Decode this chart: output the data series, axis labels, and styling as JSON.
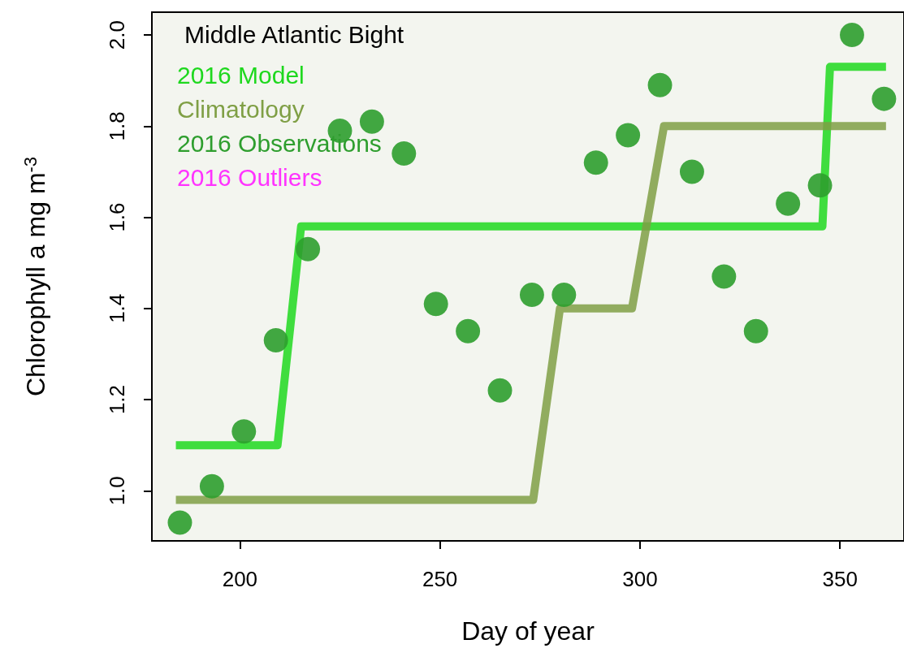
{
  "chart_data": {
    "type": "scatter",
    "legend_title": "Middle Atlantic Bight",
    "xlabel": "Day of year",
    "ylabel": "Chlorophyll a mg m$^{-3}$",
    "xlim": [
      178,
      366
    ],
    "xticks": [
      200,
      250,
      300,
      350
    ],
    "ylim": [
      0.89,
      2.05
    ],
    "yticks": [
      {
        "value": 1,
        "label": "1.0"
      },
      {
        "value": 1.2,
        "label": "1.2"
      },
      {
        "value": 1.4,
        "label": "1.4"
      },
      {
        "value": 1.6,
        "label": "1.6"
      },
      {
        "value": 1.8,
        "label": "1.8"
      },
      {
        "value": 2,
        "label": "2.0"
      }
    ],
    "legend": "top left",
    "grid": false,
    "series": [
      {
        "name": "2016 Model",
        "type": "line",
        "marker": "none",
        "color": "#1ed81e",
        "x": [
          184,
          209.4,
          215.3,
          345.6,
          347.5,
          361.5
        ],
        "values": [
          1.1,
          1.1,
          1.58,
          1.58,
          1.93,
          1.93
        ]
      },
      {
        "name": "Climatology",
        "type": "line",
        "marker": "none",
        "color": "#7f9f45",
        "x": [
          184,
          273.3,
          280,
          298,
          306,
          361.5
        ],
        "values": [
          0.98,
          0.98,
          1.4,
          1.4,
          1.8,
          1.8
        ]
      },
      {
        "name": "2016 Observations",
        "marker": "circle",
        "color": "#2e9e2e",
        "x": [
          185,
          193,
          201,
          209,
          217,
          225,
          233,
          241,
          249,
          257,
          265,
          273,
          281,
          289,
          297,
          305,
          313,
          321,
          329,
          337,
          345,
          353,
          361
        ],
        "values": [
          0.93,
          1.01,
          1.13,
          1.33,
          1.53,
          1.79,
          1.81,
          1.74,
          1.41,
          1.35,
          1.22,
          1.43,
          1.43,
          1.72,
          1.78,
          1.89,
          1.7,
          1.47,
          1.35,
          1.63,
          1.67,
          2.0,
          1.86
        ]
      },
      {
        "name": "2016 Outliers",
        "marker": "circle",
        "color": "#ff33ff"
      }
    ]
  }
}
